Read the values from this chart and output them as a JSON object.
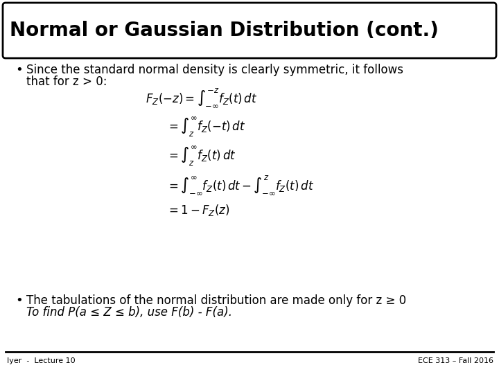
{
  "title": "Normal or Gaussian Distribution (cont.)",
  "bg_color": "#ffffff",
  "border_color": "#000000",
  "title_fontsize": 20,
  "bullet1_text1": "Since the standard normal density is clearly symmetric, it follows",
  "bullet1_text2": "that for z > 0:",
  "bullet2_text1": "The tabulations of the normal distribution are made only for z ≥ 0",
  "bullet2_text2": "To find P(a ≤ Z ≤ b), use F(b) - F(a).",
  "footer_left": "Iyer  -  Lecture 10",
  "footer_right": "ECE 313 – Fall 2016",
  "footer_fontsize": 8,
  "bullet_fontsize": 12,
  "math_fontsize": 12,
  "eq1": "$F_Z(-z) = \\int_{-\\infty}^{-z} f_Z(t)\\,dt$",
  "eq2": "$= \\int_{z}^{\\infty} f_Z(-t)\\,dt$",
  "eq3": "$= \\int_{z}^{\\infty} f_Z(t)\\,dt$",
  "eq4": "$= \\int_{-\\infty}^{\\infty} f_Z(t)\\,dt - \\int_{-\\infty}^{z} f_Z(t)\\,dt$",
  "eq5": "$= 1 - F_Z(z)$"
}
